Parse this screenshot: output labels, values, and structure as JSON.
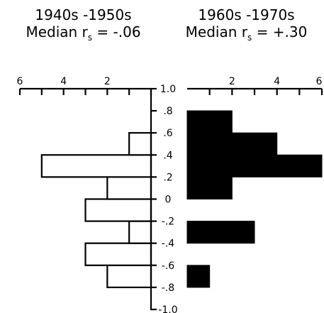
{
  "panels": [
    {
      "period": "1940s -1950s",
      "stat_prefix": "Median r",
      "stat_sub": "s",
      "stat_suffix": " = -.06"
    },
    {
      "period": "1960s -1970s",
      "stat_prefix": "Median r",
      "stat_sub": "s",
      "stat_suffix": " = +.30"
    }
  ],
  "chart_data": {
    "type": "bar",
    "orientation": "horizontal",
    "layout": "back-to-back",
    "bin_edges": [
      -1.0,
      -0.8,
      -0.6,
      -0.4,
      -0.2,
      0,
      0.2,
      0.4,
      0.6,
      0.8,
      1.0
    ],
    "ytick_labels": [
      "1.0",
      ".8",
      ".6",
      ".4",
      ".2",
      "0",
      "-.2",
      "-.4",
      "-.6",
      "-.8",
      "-1.0"
    ],
    "xticks_left": [
      {
        "v": 6,
        "label": "6"
      },
      {
        "v": 5,
        "label": ""
      },
      {
        "v": 4,
        "label": "4"
      },
      {
        "v": 3,
        "label": ""
      },
      {
        "v": 2,
        "label": "2"
      },
      {
        "v": 1,
        "label": ""
      },
      {
        "v": 0,
        "label": ""
      }
    ],
    "xticks_right": [
      {
        "v": 1,
        "label": ""
      },
      {
        "v": 2,
        "label": "2"
      },
      {
        "v": 3,
        "label": ""
      },
      {
        "v": 4,
        "label": "4"
      },
      {
        "v": 5,
        "label": ""
      },
      {
        "v": 6,
        "label": "6"
      }
    ],
    "xlim": [
      0,
      6
    ],
    "series": [
      {
        "name": "1940s -1950s",
        "side": "left",
        "fill": "#ffffff",
        "bars": [
          {
            "from": -1.0,
            "to": -0.8,
            "value": 0
          },
          {
            "from": -0.8,
            "to": -0.6,
            "value": 2
          },
          {
            "from": -0.6,
            "to": -0.4,
            "value": 3
          },
          {
            "from": -0.4,
            "to": -0.2,
            "value": 1
          },
          {
            "from": -0.2,
            "to": 0.0,
            "value": 3
          },
          {
            "from": 0.0,
            "to": 0.2,
            "value": 2
          },
          {
            "from": 0.2,
            "to": 0.4,
            "value": 5
          },
          {
            "from": 0.4,
            "to": 0.6,
            "value": 1
          },
          {
            "from": 0.6,
            "to": 0.8,
            "value": 0
          },
          {
            "from": 0.8,
            "to": 1.0,
            "value": 0
          }
        ]
      },
      {
        "name": "1960s -1970s",
        "side": "right",
        "fill": "#000000",
        "bars": [
          {
            "from": -1.0,
            "to": -0.8,
            "value": 0
          },
          {
            "from": -0.8,
            "to": -0.6,
            "value": 1
          },
          {
            "from": -0.6,
            "to": -0.4,
            "value": 0
          },
          {
            "from": -0.4,
            "to": -0.2,
            "value": 3
          },
          {
            "from": -0.2,
            "to": 0.0,
            "value": 0
          },
          {
            "from": 0.0,
            "to": 0.2,
            "value": 2
          },
          {
            "from": 0.2,
            "to": 0.4,
            "value": 6
          },
          {
            "from": 0.4,
            "to": 0.6,
            "value": 4
          },
          {
            "from": 0.6,
            "to": 0.8,
            "value": 2
          },
          {
            "from": 0.8,
            "to": 1.0,
            "value": 0
          }
        ]
      }
    ]
  }
}
